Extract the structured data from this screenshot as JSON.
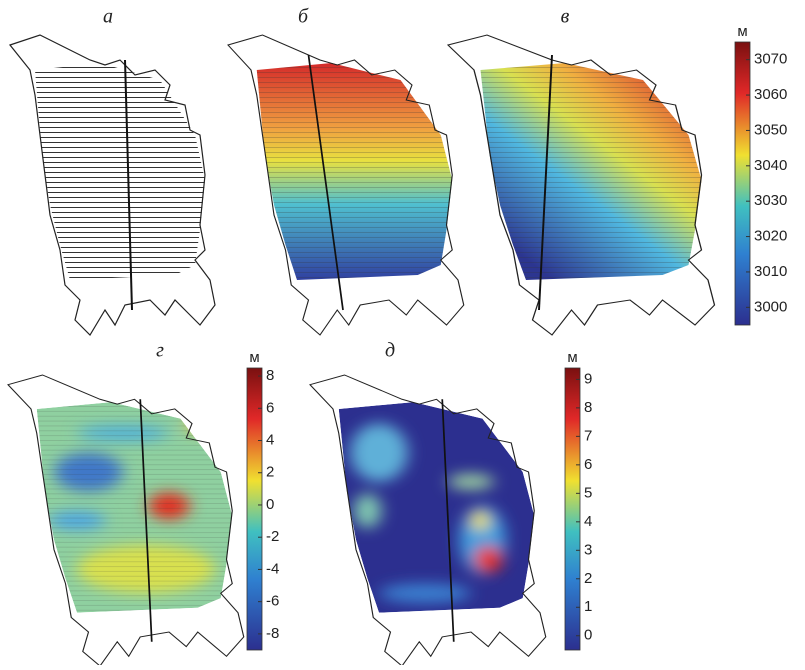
{
  "panels": [
    {
      "label": "а"
    },
    {
      "label": "б"
    },
    {
      "label": "в"
    },
    {
      "label": "г"
    },
    {
      "label": "д"
    }
  ],
  "colorbars": [
    {
      "unit": "м",
      "lim": [
        2995,
        3075
      ],
      "ticks": [
        3000,
        3010,
        3020,
        3030,
        3040,
        3050,
        3060,
        3070
      ]
    },
    {
      "unit": "м",
      "lim": [
        -9,
        8.5
      ],
      "ticks": [
        -8,
        -6,
        -4,
        -2,
        0,
        2,
        4,
        6,
        8
      ]
    },
    {
      "unit": "м",
      "lim": [
        -0.5,
        9.4
      ],
      "ticks": [
        0,
        1,
        2,
        3,
        4,
        5,
        6,
        7,
        8,
        9
      ]
    }
  ]
}
